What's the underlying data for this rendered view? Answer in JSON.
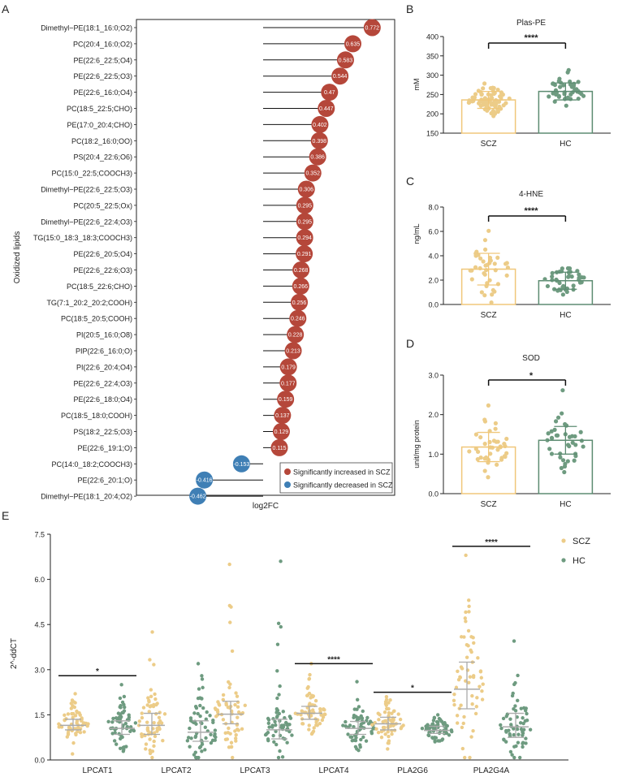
{
  "panels": {
    "a": "A",
    "b": "B",
    "c": "C",
    "d": "D",
    "e": "E"
  },
  "colors": {
    "red": "#b5473a",
    "blue": "#3f7fb5",
    "scz": "#f0c77a",
    "scz_dot": "#eccc88",
    "hc": "#5d8c72",
    "hc_dot": "#6e9b80",
    "err": "#aaaaaa",
    "sig": "#111111",
    "line": "#111111"
  },
  "chart_data": [
    {
      "id": "A",
      "type": "lollipop",
      "title": "",
      "xlabel": "log2FC",
      "ylabel": "Oxidized lipids",
      "categories": [
        "Dimethyl−PE(18:1_16:0;O2)",
        "PC(20:4_16:0;O2)",
        "PE(22:6_22:5;O4)",
        "PE(22:6_22:5;O3)",
        "PE(22:6_16:0;O4)",
        "PC(18:5_22:5;CHO)",
        "PE(17:0_20:4;CHO)",
        "PC(18:2_16:0;OO)",
        "PS(20:4_22:6;O6)",
        "PC(15:0_22:5;COOCH3)",
        "Dimethyl−PE(22:6_22:5;O3)",
        "PC(20:5_22:5;Ox)",
        "Dimethyl−PE(22:6_22:4;O3)",
        "TG(15:0_18:3_18:3;COOCH3)",
        "PE(22:6_20:5;O4)",
        "PE(22:6_22:6;O3)",
        "PC(18:5_22:6;CHO)",
        "TG(7:1_20:2_20:2;COOH)",
        "PC(18:5_20:5;COOH)",
        "PI(20:5_16:0;O8)",
        "PIP(22:6_16:0;O)",
        "PI(22:6_20:4;O4)",
        "PE(22:6_22:4;O3)",
        "PE(22:6_18:0;O4)",
        "PC(18:5_18:0;COOH)",
        "PS(18:2_22:5;O3)",
        "PE(22:6_19:1;O)",
        "PC(14:0_18:2;COOCH3)",
        "PE(22:6_20:1;O)",
        "Dimethyl−PE(18:1_20:4;O2)"
      ],
      "values": [
        0.772,
        0.635,
        0.583,
        0.544,
        0.47,
        0.447,
        0.402,
        0.398,
        0.386,
        0.352,
        0.306,
        0.295,
        0.295,
        0.294,
        0.291,
        0.268,
        0.266,
        0.256,
        0.246,
        0.228,
        0.213,
        0.179,
        0.177,
        0.159,
        0.137,
        0.129,
        0.115,
        -0.153,
        -0.416,
        -0.462
      ],
      "labels": [
        "0.772",
        "0.635",
        "0.583",
        "0.544",
        "0.47",
        "0.447",
        "0.402",
        "0.398",
        "0.386",
        "0.352",
        "0.306",
        "0.295",
        "0.295",
        "0.294",
        "0.291",
        "0.268",
        "0.266",
        "0.256",
        "0.246",
        "0.228",
        "0.213",
        "0.179",
        "0.177",
        "0.159",
        "0.137",
        "0.129",
        "0.115",
        "-0.153",
        "-0.416",
        "-0.462"
      ],
      "legend": [
        "Significantly increased in SCZ",
        "Significantly decreased in SCZ"
      ],
      "legend_position": "bottom-right",
      "xlim": [
        -0.55,
        0.85
      ]
    },
    {
      "id": "B",
      "type": "bar-scatter",
      "title": "Plas-PE",
      "ylabel": "mM",
      "categories": [
        "SCZ",
        "HC"
      ],
      "means": [
        236,
        258
      ],
      "sd": [
        22,
        22
      ],
      "ylim": [
        150,
        400
      ],
      "ticks": [
        "150",
        "200",
        "250",
        "300",
        "350",
        "400"
      ],
      "tick_values": [
        150,
        200,
        250,
        300,
        350,
        400
      ],
      "significance": "****",
      "n_points": [
        80,
        42
      ]
    },
    {
      "id": "C",
      "type": "bar-scatter",
      "title": "4-HNE",
      "ylabel": "ng/mL",
      "categories": [
        "SCZ",
        "HC"
      ],
      "means": [
        2.9,
        1.95
      ],
      "sd": [
        1.3,
        0.7
      ],
      "ylim": [
        0,
        8
      ],
      "ticks": [
        "0.0",
        "2.0",
        "4.0",
        "6.0",
        "8.0"
      ],
      "tick_values": [
        0,
        2,
        4,
        6,
        8
      ],
      "significance": "****",
      "n_points": [
        40,
        40
      ]
    },
    {
      "id": "D",
      "type": "bar-scatter",
      "title": "SOD",
      "ylabel": "unit/mg protein",
      "categories": [
        "SCZ",
        "HC"
      ],
      "means": [
        1.18,
        1.35
      ],
      "sd": [
        0.37,
        0.35
      ],
      "ylim": [
        0,
        3
      ],
      "ticks": [
        "0.0",
        "1.0",
        "2.0",
        "3.0"
      ],
      "tick_values": [
        0,
        1,
        2,
        3
      ],
      "significance": "*",
      "n_points": [
        40,
        38
      ]
    },
    {
      "id": "E",
      "type": "scatter",
      "title": "",
      "ylabel": "2^-ddCT",
      "categories": [
        "LPCAT1",
        "LPCAT2",
        "LPCAT3",
        "LPCAT4",
        "PLA2G6",
        "PLA2G4A"
      ],
      "series": [
        {
          "name": "SCZ",
          "medians": [
            1.15,
            1.15,
            1.52,
            1.55,
            1.2,
            2.35
          ],
          "q1": [
            1.0,
            0.85,
            1.2,
            1.35,
            1.0,
            1.7
          ],
          "q3": [
            1.35,
            1.55,
            1.95,
            1.78,
            1.42,
            3.25
          ],
          "max": [
            2.2,
            4.25,
            6.5,
            3.2,
            2.1,
            6.8
          ]
        },
        {
          "name": "HC",
          "medians": [
            1.05,
            0.92,
            1.0,
            1.05,
            0.98,
            1.1
          ],
          "q1": [
            0.85,
            0.62,
            0.7,
            0.85,
            0.88,
            0.75
          ],
          "q3": [
            1.3,
            1.3,
            1.35,
            1.28,
            1.12,
            1.55
          ],
          "max": [
            2.5,
            3.2,
            6.6,
            2.6,
            1.5,
            3.95
          ]
        }
      ],
      "significance": [
        "*",
        "",
        "",
        "****",
        "*",
        "****"
      ],
      "ylim": [
        0,
        7.5
      ],
      "ticks": [
        "0.0",
        "1.5",
        "3.0",
        "4.5",
        "6.0",
        "7.5"
      ],
      "tick_values": [
        0,
        1.5,
        3,
        4.5,
        6,
        7.5
      ],
      "legend": [
        "SCZ",
        "HC"
      ],
      "legend_position": "top-right"
    }
  ]
}
